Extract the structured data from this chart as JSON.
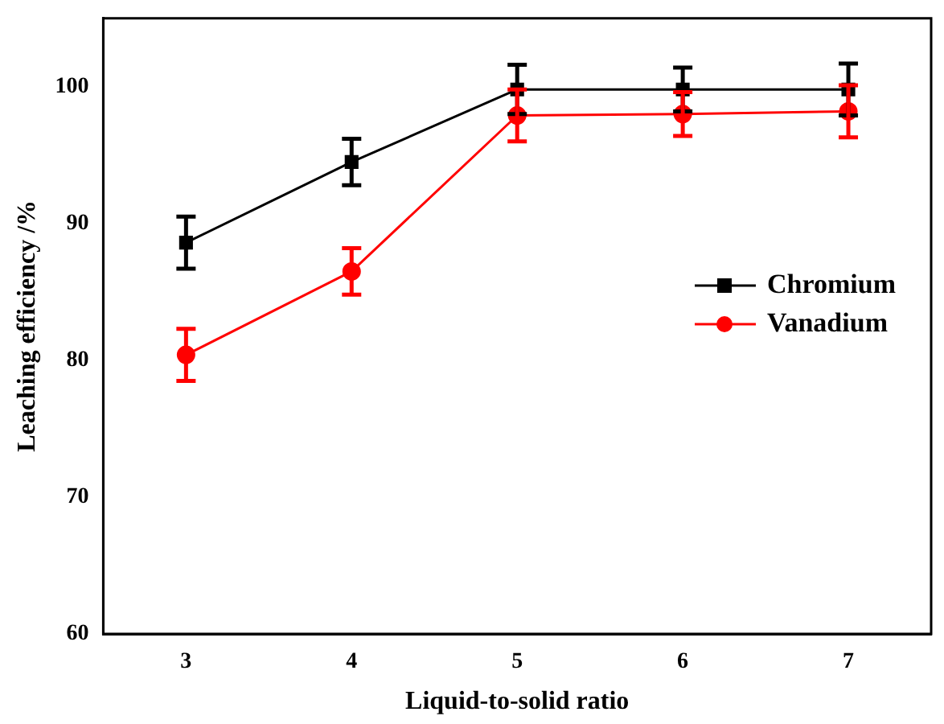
{
  "chart_data": {
    "type": "line",
    "xlabel": "Liquid-to-solid ratio",
    "ylabel": "Leaching efficiency /%",
    "x": [
      3,
      4,
      5,
      6,
      7
    ],
    "xlim": [
      2.5,
      7.5
    ],
    "xticks": [
      3,
      4,
      5,
      6,
      7
    ],
    "ylim": [
      60,
      105
    ],
    "yticks": [
      60,
      70,
      80,
      90,
      100
    ],
    "series": [
      {
        "name": "Chromium",
        "color": "#000000",
        "marker": "square",
        "values": [
          88.6,
          94.5,
          99.8,
          99.8,
          99.8
        ],
        "errors": [
          1.9,
          1.7,
          1.8,
          1.6,
          1.9
        ]
      },
      {
        "name": "Vanadium",
        "color": "#ff0000",
        "marker": "circle",
        "values": [
          80.4,
          86.5,
          97.9,
          98.0,
          98.2
        ],
        "errors": [
          1.9,
          1.7,
          1.9,
          1.6,
          1.9
        ]
      }
    ],
    "legend": "right",
    "grid": false
  }
}
